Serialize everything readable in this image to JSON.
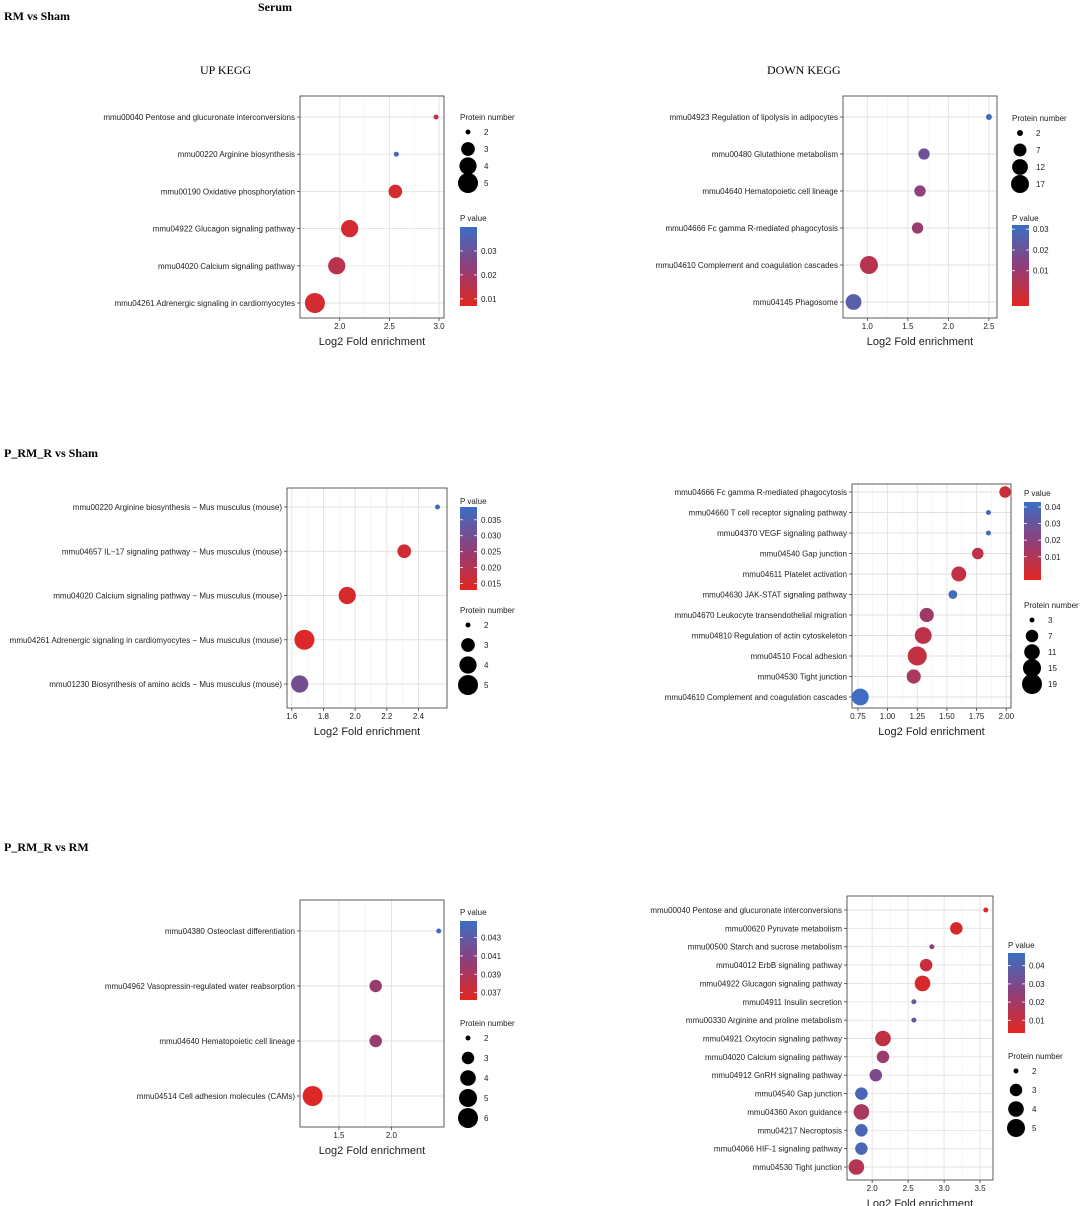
{
  "figure": {
    "title": "Serum",
    "sections": [
      "RM vs Sham",
      "P_RM_R vs Sham",
      "P_RM_R vs RM"
    ],
    "subtitles": [
      "UP KEGG",
      "DOWN KEGG"
    ]
  },
  "chart_data": [
    {
      "type": "scatter",
      "title": "UP KEGG",
      "section": "RM vs Sham",
      "xlabel": "Log2 Fold enrichment",
      "xlim": [
        1.6,
        3.05
      ],
      "xticks": [
        2.0,
        2.5,
        3.0
      ],
      "xtick_labels": [
        "2.0",
        "2.5",
        "3.0"
      ],
      "categories": [
        "mmu00040 Pentose and glucuronate interconversions",
        "mmu00220 Arginine biosynthesis",
        "mmu00190 Oxidative phosphorylation",
        "mmu04922 Glucagon signaling pathway",
        "mmu04020 Calcium signaling pathway",
        "mmu04261 Adrenergic signaling in cardiomyocytes"
      ],
      "x": [
        2.97,
        2.57,
        2.56,
        2.1,
        1.97,
        1.75
      ],
      "size": [
        2,
        2,
        3,
        4,
        4,
        5
      ],
      "pvalue": [
        0.015,
        0.038,
        0.01,
        0.01,
        0.015,
        0.01
      ],
      "size_legend": {
        "title": "Protein number",
        "values": [
          2,
          3,
          4,
          5
        ],
        "labels": [
          "2",
          "3",
          "4",
          "5"
        ],
        "min": 2,
        "max": 5
      },
      "color_legend": {
        "title": "P value",
        "range": [
          0.007,
          0.04
        ],
        "ticks": [
          0.03,
          0.02,
          0.01
        ],
        "labels": [
          "0.03",
          "0.02",
          "0.01"
        ]
      }
    },
    {
      "type": "scatter",
      "title": "DOWN KEGG",
      "section": "RM vs Sham",
      "xlabel": "Log2 Fold enrichment",
      "xlim": [
        0.7,
        2.6
      ],
      "xticks": [
        1.0,
        1.5,
        2.0,
        2.5
      ],
      "xtick_labels": [
        "1.0",
        "1.5",
        "2.0",
        "2.5"
      ],
      "categories": [
        "mmu04923 Regulation of lipolysis in adipocytes",
        "mmu00480 Glutathione metabolism",
        "mmu04640 Hematopoietic cell lineage",
        "mmu04666 Fc gamma R-mediated phagocytosis",
        "mmu04610 Complement and coagulation cascades",
        "mmu04145 Phagosome"
      ],
      "x": [
        2.5,
        1.7,
        1.65,
        1.62,
        1.02,
        0.83
      ],
      "size": [
        2,
        5,
        5,
        5,
        17,
        12
      ],
      "pvalue": [
        0.03,
        0.02,
        0.013,
        0.01,
        0.003,
        0.025
      ],
      "size_legend": {
        "title": "Protein number",
        "values": [
          2,
          7,
          12,
          17
        ],
        "labels": [
          "2",
          "7",
          "12",
          "17"
        ],
        "min": 2,
        "max": 17
      },
      "color_legend": {
        "title": "P value",
        "range": [
          -0.007,
          0.032
        ],
        "ticks": [
          0.03,
          0.02,
          0.01
        ],
        "labels": [
          "0.03",
          "0.02",
          "0.01"
        ]
      }
    },
    {
      "type": "scatter",
      "title": "",
      "section": "P_RM_R vs Sham",
      "xlabel": "Log2 Fold enrichment",
      "xlim": [
        1.57,
        2.58
      ],
      "xticks": [
        1.6,
        1.8,
        2.0,
        2.2,
        2.4
      ],
      "xtick_labels": [
        "1.6",
        "1.8",
        "2.0",
        "2.2",
        "2.4"
      ],
      "categories": [
        "mmu00220 Arginine biosynthesis − Mus musculus (mouse)",
        "mmu04657 IL−17 signaling pathway − Mus musculus (mouse)",
        "mmu04020 Calcium signaling pathway − Mus musculus (mouse)",
        "mmu04261 Adrenergic signaling in cardiomyocytes − Mus musculus (mouse)",
        "mmu01230 Biosynthesis of amino acids − Mus musculus (mouse)"
      ],
      "x": [
        2.52,
        2.31,
        1.95,
        1.68,
        1.65
      ],
      "size": [
        2,
        3,
        4,
        5,
        4
      ],
      "pvalue": [
        0.038,
        0.016,
        0.015,
        0.014,
        0.03
      ],
      "size_legend": {
        "title": "Protein number",
        "values": [
          2,
          3,
          4,
          5
        ],
        "labels": [
          "2",
          "3",
          "4",
          "5"
        ],
        "min": 2,
        "max": 5
      },
      "color_legend": {
        "title": "P value",
        "range": [
          0.013,
          0.039
        ],
        "ticks": [
          0.035,
          0.03,
          0.025,
          0.02,
          0.015
        ],
        "labels": [
          "0.035",
          "0.030",
          "0.025",
          "0.020",
          "0.015"
        ]
      }
    },
    {
      "type": "scatter",
      "title": "",
      "section": "P_RM_R vs Sham",
      "xlabel": "Log2 Fold enrichment",
      "xlim": [
        0.7,
        2.04
      ],
      "xticks": [
        0.75,
        1.0,
        1.25,
        1.5,
        1.75,
        2.0
      ],
      "xtick_labels": [
        "0.75",
        "1.00",
        "1.25",
        "1.50",
        "1.75",
        "2.00"
      ],
      "categories": [
        "mmu04666 Fc gamma R-mediated phagocytosis",
        "mmu04660 T cell receptor signaling pathway",
        "mmu04370 VEGF signaling pathway",
        "mmu04540 Gap junction",
        "mmu04611 Platelet activation",
        "mmu04630 JAK-STAT signaling pathway",
        "mmu04670 Leukocyte transendothelial migration",
        "mmu04810 Regulation of actin cytoskeleton",
        "mmu04510 Focal adhesion",
        "mmu04530 Tight junction",
        "mmu04610 Complement and coagulation cascades"
      ],
      "x": [
        1.99,
        1.85,
        1.85,
        1.76,
        1.6,
        1.55,
        1.33,
        1.3,
        1.25,
        1.22,
        0.77
      ],
      "size": [
        6,
        2,
        2,
        6,
        10,
        4,
        9,
        13,
        17,
        9,
        13
      ],
      "pvalue": [
        0.003,
        0.04,
        0.038,
        0.006,
        0.005,
        0.04,
        0.015,
        0.007,
        0.005,
        0.012,
        0.042
      ],
      "size_legend": {
        "title": "Protein number",
        "values": [
          3,
          7,
          11,
          15,
          19
        ],
        "labels": [
          "3",
          "7",
          "11",
          "15",
          "19"
        ],
        "min": 3,
        "max": 19
      },
      "color_legend": {
        "title": "P value",
        "range": [
          -0.004,
          0.043
        ],
        "ticks": [
          0.04,
          0.03,
          0.02,
          0.01
        ],
        "labels": [
          "0.04",
          "0.03",
          "0.02",
          "0.01"
        ]
      }
    },
    {
      "type": "scatter",
      "title": "",
      "section": "P_RM_R vs RM",
      "xlabel": "Log2 Fold enrichment",
      "xlim": [
        1.13,
        2.5
      ],
      "xticks": [
        1.5,
        2.0
      ],
      "xtick_labels": [
        "1.5",
        "2.0"
      ],
      "categories": [
        "mmu04380 Osteoclast differentiation",
        "mmu04962 Vasopressin-regulated water reabsorption",
        "mmu04640 Hematopoietic cell lineage",
        "mmu04514 Cell adhesion molecules (CAMs)"
      ],
      "x": [
        2.45,
        1.85,
        1.85,
        1.25
      ],
      "size": [
        2,
        3,
        3,
        6
      ],
      "pvalue": [
        0.0445,
        0.04,
        0.04,
        0.0365
      ],
      "size_legend": {
        "title": "Protein number",
        "values": [
          2,
          3,
          4,
          5,
          6
        ],
        "labels": [
          "2",
          "3",
          "4",
          "5",
          "6"
        ],
        "min": 2,
        "max": 6
      },
      "color_legend": {
        "title": "P value",
        "range": [
          0.0362,
          0.0448
        ],
        "ticks": [
          0.043,
          0.041,
          0.039,
          0.037
        ],
        "labels": [
          "0.043",
          "0.041",
          "0.039",
          "0.037"
        ]
      }
    },
    {
      "type": "scatter",
      "title": "",
      "section": "P_RM_R vs RM",
      "xlabel": "Log2 Fold enrichment",
      "xlim": [
        1.65,
        3.68
      ],
      "xticks": [
        2.0,
        2.5,
        3.0,
        3.5
      ],
      "xtick_labels": [
        "2.0",
        "2.5",
        "3.0",
        "3.5"
      ],
      "categories": [
        "mmu00040 Pentose and glucuronate interconversions",
        "mmu00620 Pyruvate metabolism",
        "mmu00500 Starch and sucrose metabolism",
        "mmu04012 ErbB signaling pathway",
        "mmu04922 Glucagon signaling pathway",
        "mmu04911 Insulin secretion",
        "mmu00330 Arginine and proline metabolism",
        "mmu04921 Oxytocin signaling pathway",
        "mmu04020 Calcium signaling pathway",
        "mmu04912 GnRH signaling pathway",
        "mmu04540 Gap junction",
        "mmu04360 Axon guidance",
        "mmu04217 Necroptosis",
        "mmu04066 HIF-1 signaling pathway",
        "mmu04530 Tight junction"
      ],
      "x": [
        3.58,
        3.17,
        2.83,
        2.75,
        2.7,
        2.58,
        2.58,
        2.15,
        2.15,
        2.05,
        1.85,
        1.85,
        1.85,
        1.85,
        1.78
      ],
      "size": [
        2,
        3,
        2,
        3,
        4,
        2,
        2,
        4,
        3,
        3,
        3,
        4,
        3,
        3,
        4
      ],
      "pvalue": [
        0.006,
        0.006,
        0.025,
        0.01,
        0.006,
        0.035,
        0.035,
        0.012,
        0.022,
        0.03,
        0.043,
        0.018,
        0.043,
        0.043,
        0.015
      ],
      "size_legend": {
        "title": "Protein number",
        "values": [
          2,
          3,
          4,
          5
        ],
        "labels": [
          "2",
          "3",
          "4",
          "5"
        ],
        "min": 2,
        "max": 5
      },
      "color_legend": {
        "title": "P value",
        "range": [
          0.003,
          0.047
        ],
        "ticks": [
          0.04,
          0.03,
          0.02,
          0.01
        ],
        "labels": [
          "0.04",
          "0.03",
          "0.02",
          "0.01"
        ]
      }
    }
  ]
}
